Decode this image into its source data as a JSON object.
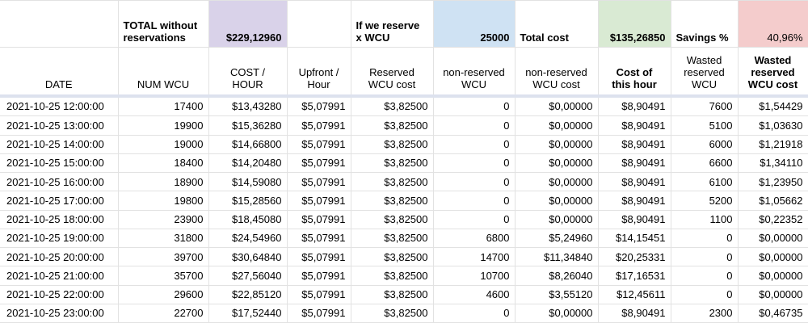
{
  "app": "spreadsheet",
  "colors": {
    "purple": "#d9d2e9",
    "blue": "#cfe2f3",
    "green": "#d9ead3",
    "red": "#f4cccc",
    "gridline": "#e2e2e2",
    "frozen_divider": "#dde2ee"
  },
  "table": {
    "summary": [
      {
        "name": "empty-a1",
        "text": "",
        "bold": false,
        "align": "left",
        "bg": ""
      },
      {
        "name": "total-without-reservations-label",
        "text": "TOTAL without reservations",
        "bold": true,
        "align": "left",
        "bg": ""
      },
      {
        "name": "total-without-reservations-value",
        "text": "$229,12960",
        "bold": true,
        "align": "right",
        "bg": "purple"
      },
      {
        "name": "empty-d1",
        "text": "",
        "bold": false,
        "align": "left",
        "bg": ""
      },
      {
        "name": "if-we-reserve-label",
        "text": "If we reserve x WCU",
        "bold": true,
        "align": "left",
        "bg": ""
      },
      {
        "name": "reserved-wcu-value",
        "text": "25000",
        "bold": true,
        "align": "right",
        "bg": "blue"
      },
      {
        "name": "total-cost-label",
        "text": "Total cost",
        "bold": true,
        "align": "left",
        "bg": ""
      },
      {
        "name": "total-cost-value",
        "text": "$135,26850",
        "bold": true,
        "align": "right",
        "bg": "green"
      },
      {
        "name": "savings-percent-label",
        "text": "Savings %",
        "bold": true,
        "align": "left",
        "bg": ""
      },
      {
        "name": "savings-percent-value",
        "text": "40,96%",
        "bold": false,
        "align": "right",
        "bg": "red"
      }
    ],
    "headers": [
      {
        "key": "date",
        "text": "DATE",
        "bold": false
      },
      {
        "key": "num-wcu",
        "text": "NUM WCU",
        "bold": false
      },
      {
        "key": "cost-hour",
        "text": "COST / HOUR",
        "bold": false
      },
      {
        "key": "upfront-hour",
        "text": "Upfront / Hour",
        "bold": false
      },
      {
        "key": "reserved-wcu-cost",
        "text": "Reserved WCU cost",
        "bold": false
      },
      {
        "key": "non-reserved-wcu",
        "text": "non-reserved WCU",
        "bold": false
      },
      {
        "key": "non-reserved-wcu-cost",
        "text": "non-reserved WCU cost",
        "bold": false
      },
      {
        "key": "cost-of-this-hour",
        "text": "Cost of this hour",
        "bold": true
      },
      {
        "key": "wasted-reserved-wcu",
        "text": "Wasted reserved WCU",
        "bold": false
      },
      {
        "key": "wasted-reserved-wcu-cost",
        "text": "Wasted reserved WCU cost",
        "bold": true
      }
    ],
    "rows": [
      [
        "2021-10-25 12:00:00",
        "17400",
        "$13,43280",
        "$5,07991",
        "$3,82500",
        "0",
        "$0,00000",
        "$8,90491",
        "7600",
        "$1,54429"
      ],
      [
        "2021-10-25 13:00:00",
        "19900",
        "$15,36280",
        "$5,07991",
        "$3,82500",
        "0",
        "$0,00000",
        "$8,90491",
        "5100",
        "$1,03630"
      ],
      [
        "2021-10-25 14:00:00",
        "19000",
        "$14,66800",
        "$5,07991",
        "$3,82500",
        "0",
        "$0,00000",
        "$8,90491",
        "6000",
        "$1,21918"
      ],
      [
        "2021-10-25 15:00:00",
        "18400",
        "$14,20480",
        "$5,07991",
        "$3,82500",
        "0",
        "$0,00000",
        "$8,90491",
        "6600",
        "$1,34110"
      ],
      [
        "2021-10-25 16:00:00",
        "18900",
        "$14,59080",
        "$5,07991",
        "$3,82500",
        "0",
        "$0,00000",
        "$8,90491",
        "6100",
        "$1,23950"
      ],
      [
        "2021-10-25 17:00:00",
        "19800",
        "$15,28560",
        "$5,07991",
        "$3,82500",
        "0",
        "$0,00000",
        "$8,90491",
        "5200",
        "$1,05662"
      ],
      [
        "2021-10-25 18:00:00",
        "23900",
        "$18,45080",
        "$5,07991",
        "$3,82500",
        "0",
        "$0,00000",
        "$8,90491",
        "1100",
        "$0,22352"
      ],
      [
        "2021-10-25 19:00:00",
        "31800",
        "$24,54960",
        "$5,07991",
        "$3,82500",
        "6800",
        "$5,24960",
        "$14,15451",
        "0",
        "$0,00000"
      ],
      [
        "2021-10-25 20:00:00",
        "39700",
        "$30,64840",
        "$5,07991",
        "$3,82500",
        "14700",
        "$11,34840",
        "$20,25331",
        "0",
        "$0,00000"
      ],
      [
        "2021-10-25 21:00:00",
        "35700",
        "$27,56040",
        "$5,07991",
        "$3,82500",
        "10700",
        "$8,26040",
        "$17,16531",
        "0",
        "$0,00000"
      ],
      [
        "2021-10-25 22:00:00",
        "29600",
        "$22,85120",
        "$5,07991",
        "$3,82500",
        "4600",
        "$3,55120",
        "$12,45611",
        "0",
        "$0,00000"
      ],
      [
        "2021-10-25 23:00:00",
        "22700",
        "$17,52440",
        "$5,07991",
        "$3,82500",
        "0",
        "$0,00000",
        "$8,90491",
        "2300",
        "$0,46735"
      ]
    ]
  }
}
